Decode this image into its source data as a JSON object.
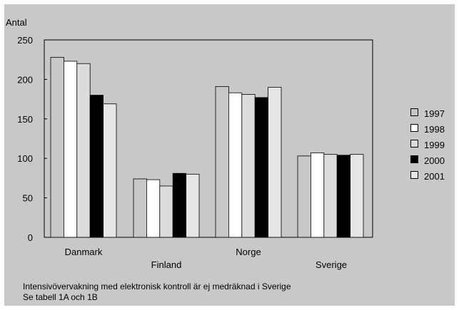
{
  "chart_data": {
    "type": "bar",
    "ylabel": "Antal",
    "xlabel": "",
    "ylim": [
      0,
      250
    ],
    "yticks": [
      0,
      50,
      100,
      150,
      200,
      250
    ],
    "grid": false,
    "legend_position": "right",
    "categories": [
      "Danmark",
      "Finland",
      "Norge",
      "Sverige"
    ],
    "series": [
      {
        "name": "1997",
        "color": "#c8c8c8",
        "values": [
          228,
          74,
          191,
          103
        ]
      },
      {
        "name": "1998",
        "color": "#ffffff",
        "values": [
          223,
          73,
          183,
          107
        ]
      },
      {
        "name": "1999",
        "color": "#dcdcdc",
        "values": [
          220,
          65,
          181,
          105
        ]
      },
      {
        "name": "2000",
        "color": "#000000",
        "values": [
          180,
          81,
          177,
          104
        ]
      },
      {
        "name": "2001",
        "color": "#e6e6e6",
        "values": [
          169,
          80,
          190,
          105
        ]
      }
    ]
  },
  "footnote": {
    "line1": "Intensivövervakning med elektronisk kontroll är ej medräknad i Sverige",
    "line2": "Se tabell 1A och 1B"
  }
}
